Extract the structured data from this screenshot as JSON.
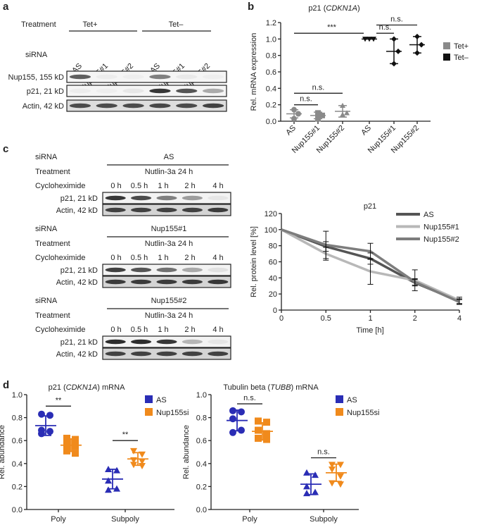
{
  "panel_labels": [
    "a",
    "b",
    "c",
    "d"
  ],
  "colors": {
    "tet_plus": "#8a8a8a",
    "tet_minus": "#111111",
    "as_line": "#555555",
    "nup1_line": "#b8b8b8",
    "nup2_line": "#7d7d7d",
    "as_dot": "#2a2db5",
    "nup_dot": "#f08a1c"
  },
  "blot_a": {
    "treatment_label": "Treatment",
    "groups": [
      "Tet+",
      "Tet–"
    ],
    "sirna_label": "siRNA",
    "lanes": [
      "AS",
      "Nup155#1",
      "Nup155#2",
      "AS",
      "Nup155#1",
      "Nup155#2"
    ],
    "rows": [
      {
        "label": "Nup155, 155 kD",
        "intensity": [
          0.7,
          0.06,
          0.05,
          0.6,
          0.1,
          0.05
        ]
      },
      {
        "label": "p21, 21 kD",
        "intensity": [
          0.06,
          0.05,
          0.12,
          0.9,
          0.75,
          0.45
        ]
      },
      {
        "label": "Actin, 42 kD",
        "intensity": [
          0.8,
          0.8,
          0.8,
          0.82,
          0.8,
          0.85
        ]
      }
    ]
  },
  "blot_c": {
    "sirna_label": "siRNA",
    "treatment_label": "Treatment",
    "chx_label": "Cycloheximide",
    "treatment": "Nutlin-3a 24 h",
    "times": [
      "0 h",
      "0.5 h",
      "1 h",
      "2 h",
      "4 h"
    ],
    "groups": [
      {
        "sirna": "AS",
        "rows": [
          {
            "label": "p21, 21 kD",
            "intensity": [
              0.9,
              0.8,
              0.6,
              0.5,
              0.12
            ]
          },
          {
            "label": "Actin, 42 kD",
            "intensity": [
              0.85,
              0.85,
              0.85,
              0.85,
              0.88
            ]
          }
        ]
      },
      {
        "sirna": "Nup155#1",
        "rows": [
          {
            "label": "p21, 21 kD",
            "intensity": [
              0.85,
              0.75,
              0.65,
              0.45,
              0.15
            ]
          },
          {
            "label": "Actin, 42 kD",
            "intensity": [
              0.88,
              0.88,
              0.88,
              0.88,
              0.9
            ]
          }
        ]
      },
      {
        "sirna": "Nup155#2",
        "rows": [
          {
            "label": "p21, 21 kD",
            "intensity": [
              0.95,
              0.95,
              0.9,
              0.4,
              0.12
            ]
          },
          {
            "label": "Actin, 42 kD",
            "intensity": [
              0.85,
              0.85,
              0.85,
              0.85,
              0.85
            ]
          }
        ]
      }
    ]
  },
  "chart_data": [
    {
      "id": "b",
      "type": "scatter",
      "title_parts": [
        "p21 (",
        "CDKN1A",
        ")"
      ],
      "ylabel": "Rel. mRNA expression",
      "ylim": [
        0,
        1.2
      ],
      "yticks": [
        "0.0",
        "0.2",
        "0.4",
        "0.6",
        "0.8",
        "1.0",
        "1.2"
      ],
      "categories": [
        "AS",
        "Nup155#1",
        "Nup155#2",
        "AS",
        "Nup155#1",
        "Nup155#2"
      ],
      "legend": [
        {
          "name": "Tet+",
          "color": "#8a8a8a"
        },
        {
          "name": "Tet–",
          "color": "#111111"
        }
      ],
      "legend_position": "right",
      "groups": [
        {
          "series": "Tet+",
          "marker": "circle",
          "values": [
            0.14,
            0.09,
            0.03
          ],
          "mean": 0.09,
          "sd": 0.05
        },
        {
          "series": "Tet+",
          "marker": "square",
          "values": [
            0.1,
            0.07,
            0.03
          ],
          "mean": 0.07,
          "sd": 0.04
        },
        {
          "series": "Tet+",
          "marker": "triangle",
          "values": [
            0.19,
            0.1,
            0.08
          ],
          "mean": 0.12,
          "sd": 0.07
        },
        {
          "series": "Tet–",
          "marker": "triangle-down",
          "values": [
            1.0,
            1.0,
            1.0
          ],
          "mean": 1.0,
          "sd": 0
        },
        {
          "series": "Tet–",
          "marker": "diamond",
          "values": [
            1.0,
            0.85,
            0.7
          ],
          "mean": 0.85,
          "sd": 0.15
        },
        {
          "series": "Tet–",
          "marker": "diamond",
          "values": [
            1.03,
            0.93,
            0.83
          ],
          "mean": 0.93,
          "sd": 0.1
        }
      ],
      "significance": [
        {
          "from": 0,
          "to": 3,
          "y": 1.07,
          "label": "***"
        },
        {
          "from": 3,
          "to": 4,
          "y": 1.07,
          "label": "n.s."
        },
        {
          "from": 3,
          "to": 5,
          "y": 1.17,
          "label": "n.s."
        },
        {
          "from": 0,
          "to": 1,
          "y": 0.2,
          "label": "n.s."
        },
        {
          "from": 0,
          "to": 2,
          "y": 0.34,
          "label": "n.s."
        }
      ]
    },
    {
      "id": "c",
      "type": "line",
      "title": "p21",
      "xlabel": "Time [h]",
      "ylabel": "Rel. protein level [%]",
      "ylim": [
        0,
        120
      ],
      "yticks": [
        "0",
        "20",
        "40",
        "60",
        "80",
        "100",
        "120"
      ],
      "x": [
        "0",
        "0.5",
        "1",
        "2",
        "4"
      ],
      "legend_position": "top-right",
      "series": [
        {
          "name": "AS",
          "color": "#555555",
          "values": [
            100,
            79,
            64,
            34,
            11
          ],
          "err": [
            0,
            6,
            7,
            4,
            3
          ]
        },
        {
          "name": "Nup155#1",
          "color": "#b8b8b8",
          "values": [
            100,
            70,
            48,
            37,
            12
          ],
          "err": [
            0,
            8,
            16,
            13,
            4
          ]
        },
        {
          "name": "Nup155#2",
          "color": "#7d7d7d",
          "values": [
            100,
            81,
            73,
            35,
            10
          ],
          "err": [
            0,
            17,
            10,
            4,
            3
          ]
        }
      ]
    },
    {
      "id": "d1",
      "type": "scatter",
      "title_parts": [
        "p21 (",
        "CDKN1A",
        ") mRNA"
      ],
      "ylabel": "Rel. abundance",
      "ylim": [
        0,
        1.0
      ],
      "yticks": [
        "0.0",
        "0.2",
        "0.4",
        "0.6",
        "0.8",
        "1.0"
      ],
      "categories": [
        "Poly",
        "Subpoly"
      ],
      "legend": [
        {
          "name": "AS",
          "color": "#2a2db5"
        },
        {
          "name": "Nup155si",
          "color": "#f08a1c"
        }
      ],
      "legend_position": "top-right",
      "groups": [
        {
          "category": "Poly",
          "series": "AS",
          "marker": "circle",
          "values": [
            0.83,
            0.82,
            0.69,
            0.68,
            0.66
          ],
          "mean": 0.73,
          "sd": 0.085
        },
        {
          "category": "Poly",
          "series": "Nup155si",
          "marker": "square",
          "values": [
            0.62,
            0.61,
            0.57,
            0.55,
            0.51,
            0.49
          ],
          "mean": 0.56,
          "sd": 0.055
        },
        {
          "category": "Subpoly",
          "series": "AS",
          "marker": "triangle",
          "values": [
            0.35,
            0.34,
            0.25,
            0.18,
            0.17
          ],
          "mean": 0.265,
          "sd": 0.085
        },
        {
          "category": "Subpoly",
          "series": "Nup155si",
          "marker": "triangle-down",
          "values": [
            0.51,
            0.48,
            0.43,
            0.42,
            0.39,
            0.38
          ],
          "mean": 0.44,
          "sd": 0.055
        }
      ],
      "significance": [
        {
          "group_from": 0,
          "group_to": 1,
          "y": 0.9,
          "label": "**"
        },
        {
          "group_from": 2,
          "group_to": 3,
          "y": 0.6,
          "label": "**"
        }
      ]
    },
    {
      "id": "d2",
      "type": "scatter",
      "title_parts": [
        "Tubulin beta (",
        "TUBB",
        ") mRNA"
      ],
      "ylabel": "Rel. abundance",
      "ylim": [
        0,
        1.0
      ],
      "yticks": [
        "0.0",
        "0.2",
        "0.4",
        "0.6",
        "0.8",
        "1.0"
      ],
      "categories": [
        "Poly",
        "Subpoly"
      ],
      "legend": [
        {
          "name": "AS",
          "color": "#2a2db5"
        },
        {
          "name": "Nup155si",
          "color": "#f08a1c"
        }
      ],
      "legend_position": "top-right",
      "groups": [
        {
          "category": "Poly",
          "series": "AS",
          "marker": "circle",
          "values": [
            0.86,
            0.85,
            0.79,
            0.69,
            0.67
          ],
          "mean": 0.775,
          "sd": 0.09
        },
        {
          "category": "Poly",
          "series": "Nup155si",
          "marker": "square",
          "values": [
            0.77,
            0.76,
            0.69,
            0.66,
            0.62,
            0.61
          ],
          "mean": 0.68,
          "sd": 0.075
        },
        {
          "category": "Subpoly",
          "series": "AS",
          "marker": "triangle",
          "values": [
            0.32,
            0.3,
            0.2,
            0.15,
            0.14
          ],
          "mean": 0.22,
          "sd": 0.09
        },
        {
          "category": "Subpoly",
          "series": "Nup155si",
          "marker": "triangle-down",
          "values": [
            0.39,
            0.39,
            0.35,
            0.29,
            0.23,
            0.22
          ],
          "mean": 0.32,
          "sd": 0.075
        }
      ],
      "significance": [
        {
          "group_from": 0,
          "group_to": 1,
          "y": 0.92,
          "label": "n.s."
        },
        {
          "group_from": 2,
          "group_to": 3,
          "y": 0.45,
          "label": "n.s."
        }
      ]
    }
  ]
}
